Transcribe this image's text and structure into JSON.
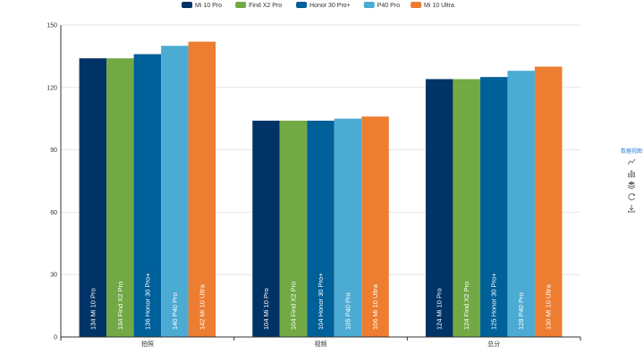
{
  "chart_data": {
    "type": "bar",
    "categories": [
      "拍照",
      "视频",
      "总分"
    ],
    "series": [
      {
        "name": "Mi 10 Pro",
        "color": "#003366",
        "values": [
          134,
          104,
          124
        ]
      },
      {
        "name": "Find X2 Pro",
        "color": "#72a944",
        "values": [
          134,
          104,
          124
        ]
      },
      {
        "name": "Honor 30 Pro+",
        "color": "#00609a",
        "values": [
          136,
          104,
          125
        ]
      },
      {
        "name": "P40 Pro",
        "color": "#4cabd3",
        "values": [
          140,
          105,
          128
        ]
      },
      {
        "name": "Mi 10 Ultra",
        "color": "#ed7d31",
        "values": [
          142,
          106,
          130
        ]
      }
    ],
    "yticks": [
      0,
      30,
      60,
      90,
      120,
      150
    ],
    "ylim": [
      0,
      150
    ],
    "grid": true,
    "legend_position": "top",
    "data_labels": "inside-bottom, rotated, value followed by series name"
  },
  "toolbox": {
    "title": "数据视图",
    "icons": [
      "line-chart-icon",
      "bar-chart-icon",
      "stack-icon",
      "restore-icon",
      "download-icon"
    ]
  }
}
